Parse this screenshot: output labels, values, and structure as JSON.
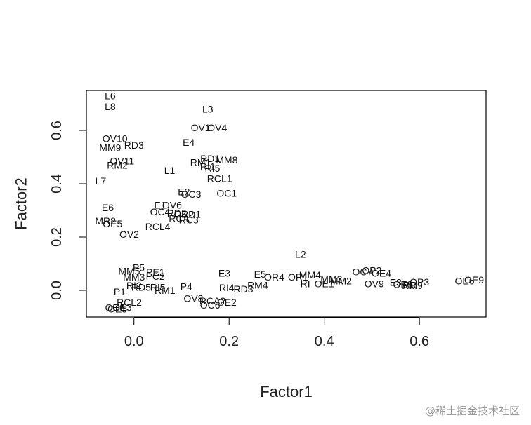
{
  "chart_data": {
    "type": "scatter",
    "title": "",
    "xlabel": "Factor1",
    "ylabel": "Factor2",
    "xlim": [
      -0.1,
      0.74
    ],
    "ylim": [
      -0.1,
      0.75
    ],
    "xticks": [
      0.0,
      0.2,
      0.4,
      0.6
    ],
    "yticks": [
      0.0,
      0.2,
      0.4,
      0.6
    ],
    "xtick_labels": [
      "0.0",
      "0.2",
      "0.4",
      "0.6"
    ],
    "ytick_labels": [
      "0.0",
      "0.2",
      "0.4",
      "0.6"
    ],
    "grid": false,
    "points": [
      {
        "label": "L6",
        "x": -0.05,
        "y": 0.73
      },
      {
        "label": "L8",
        "x": -0.05,
        "y": 0.69
      },
      {
        "label": "L3",
        "x": 0.155,
        "y": 0.68
      },
      {
        "label": "OV10",
        "x": -0.04,
        "y": 0.57
      },
      {
        "label": "OV1",
        "x": 0.14,
        "y": 0.61
      },
      {
        "label": "OV4",
        "x": 0.175,
        "y": 0.61
      },
      {
        "label": "MM9",
        "x": -0.05,
        "y": 0.535
      },
      {
        "label": "RD3",
        "x": 0.0,
        "y": 0.545
      },
      {
        "label": "E4",
        "x": 0.115,
        "y": 0.555
      },
      {
        "label": "MM8",
        "x": 0.195,
        "y": 0.49
      },
      {
        "label": "RD1",
        "x": 0.16,
        "y": 0.495
      },
      {
        "label": "RM1",
        "x": 0.14,
        "y": 0.48
      },
      {
        "label": "RI1",
        "x": 0.155,
        "y": 0.465
      },
      {
        "label": "RI5",
        "x": 0.165,
        "y": 0.458
      },
      {
        "label": "OV11",
        "x": -0.025,
        "y": 0.485
      },
      {
        "label": "RM2",
        "x": -0.035,
        "y": 0.47
      },
      {
        "label": "L1",
        "x": 0.075,
        "y": 0.45
      },
      {
        "label": "RCL1",
        "x": 0.18,
        "y": 0.42
      },
      {
        "label": "L7",
        "x": -0.07,
        "y": 0.41
      },
      {
        "label": "E2",
        "x": 0.105,
        "y": 0.37
      },
      {
        "label": "OC3",
        "x": 0.12,
        "y": 0.36
      },
      {
        "label": "OC1",
        "x": 0.195,
        "y": 0.365
      },
      {
        "label": "E6",
        "x": -0.055,
        "y": 0.31
      },
      {
        "label": "E1",
        "x": 0.055,
        "y": 0.32
      },
      {
        "label": "OV6",
        "x": 0.08,
        "y": 0.32
      },
      {
        "label": "OC4",
        "x": 0.055,
        "y": 0.295
      },
      {
        "label": "RD2",
        "x": 0.09,
        "y": 0.29
      },
      {
        "label": "OC2",
        "x": 0.105,
        "y": 0.285
      },
      {
        "label": "RD1b",
        "text": "RD1",
        "x": 0.12,
        "y": 0.285
      },
      {
        "label": "RCA",
        "x": 0.095,
        "y": 0.27
      },
      {
        "label": "RC3",
        "x": 0.115,
        "y": 0.265
      },
      {
        "label": "MR2",
        "x": -0.06,
        "y": 0.26
      },
      {
        "label": "OE5",
        "x": -0.045,
        "y": 0.25
      },
      {
        "label": "RCL4",
        "x": 0.05,
        "y": 0.24
      },
      {
        "label": "OV2",
        "x": -0.01,
        "y": 0.21
      },
      {
        "label": "L2",
        "x": 0.35,
        "y": 0.135
      },
      {
        "label": "P5",
        "x": 0.01,
        "y": 0.085
      },
      {
        "label": "MM5",
        "x": -0.01,
        "y": 0.072
      },
      {
        "label": "E5",
        "x": 0.265,
        "y": 0.06
      },
      {
        "label": "E3",
        "x": 0.19,
        "y": 0.065
      },
      {
        "label": "PE1",
        "x": 0.045,
        "y": 0.068
      },
      {
        "label": "PC2",
        "x": 0.045,
        "y": 0.052
      },
      {
        "label": "MM3",
        "x": 0.0,
        "y": 0.05
      },
      {
        "label": "OR4",
        "x": 0.295,
        "y": 0.05
      },
      {
        "label": "OR1",
        "x": 0.345,
        "y": 0.05
      },
      {
        "label": "MM4",
        "x": 0.37,
        "y": 0.058
      },
      {
        "label": "OC7",
        "x": 0.48,
        "y": 0.07
      },
      {
        "label": "OP2",
        "x": 0.5,
        "y": 0.075
      },
      {
        "label": "MM3b",
        "text": "MM3",
        "x": 0.415,
        "y": 0.042
      },
      {
        "label": "MM2",
        "x": 0.435,
        "y": 0.035
      },
      {
        "label": "OE4",
        "x": 0.52,
        "y": 0.065
      },
      {
        "label": "E3b",
        "text": "E3",
        "x": 0.55,
        "y": 0.03
      },
      {
        "label": "OP3",
        "x": 0.6,
        "y": 0.032
      },
      {
        "label": "OE9",
        "x": 0.715,
        "y": 0.04
      },
      {
        "label": "OE6",
        "x": 0.695,
        "y": 0.035
      },
      {
        "label": "RI",
        "x": 0.36,
        "y": 0.025
      },
      {
        "label": "OE1",
        "x": 0.4,
        "y": 0.025
      },
      {
        "label": "OV9",
        "x": 0.505,
        "y": 0.025
      },
      {
        "label": "PR",
        "x": 0.58,
        "y": 0.02
      },
      {
        "label": "OE8",
        "x": 0.565,
        "y": 0.022
      },
      {
        "label": "RM9",
        "x": 0.585,
        "y": 0.018
      },
      {
        "label": "P4",
        "x": 0.11,
        "y": 0.015
      },
      {
        "label": "RI4",
        "x": 0.195,
        "y": 0.01
      },
      {
        "label": "RD3b",
        "text": "RD3",
        "x": 0.23,
        "y": 0.005
      },
      {
        "label": "RM4",
        "x": 0.26,
        "y": 0.02
      },
      {
        "label": "RI2",
        "x": 0.0,
        "y": 0.018
      },
      {
        "label": "RD5",
        "x": 0.015,
        "y": 0.012
      },
      {
        "label": "RI5b",
        "text": "RI5",
        "x": 0.05,
        "y": 0.012
      },
      {
        "label": "RM1b",
        "text": "RM1",
        "x": 0.065,
        "y": 0.0
      },
      {
        "label": "P1",
        "x": -0.03,
        "y": -0.005
      },
      {
        "label": "OV8",
        "x": 0.125,
        "y": -0.03
      },
      {
        "label": "RCA2",
        "x": 0.165,
        "y": -0.04
      },
      {
        "label": "OE2",
        "x": 0.195,
        "y": -0.045
      },
      {
        "label": "OC6",
        "x": 0.16,
        "y": -0.055
      },
      {
        "label": "RCL2",
        "x": -0.01,
        "y": -0.045
      },
      {
        "label": "OE3",
        "x": -0.025,
        "y": -0.063
      },
      {
        "label": "OE6b",
        "text": "OE6",
        "x": -0.04,
        "y": -0.065
      },
      {
        "label": "OE5b",
        "text": "OE5",
        "x": -0.035,
        "y": -0.07
      }
    ]
  },
  "watermark": "@稀土掘金技术社区"
}
